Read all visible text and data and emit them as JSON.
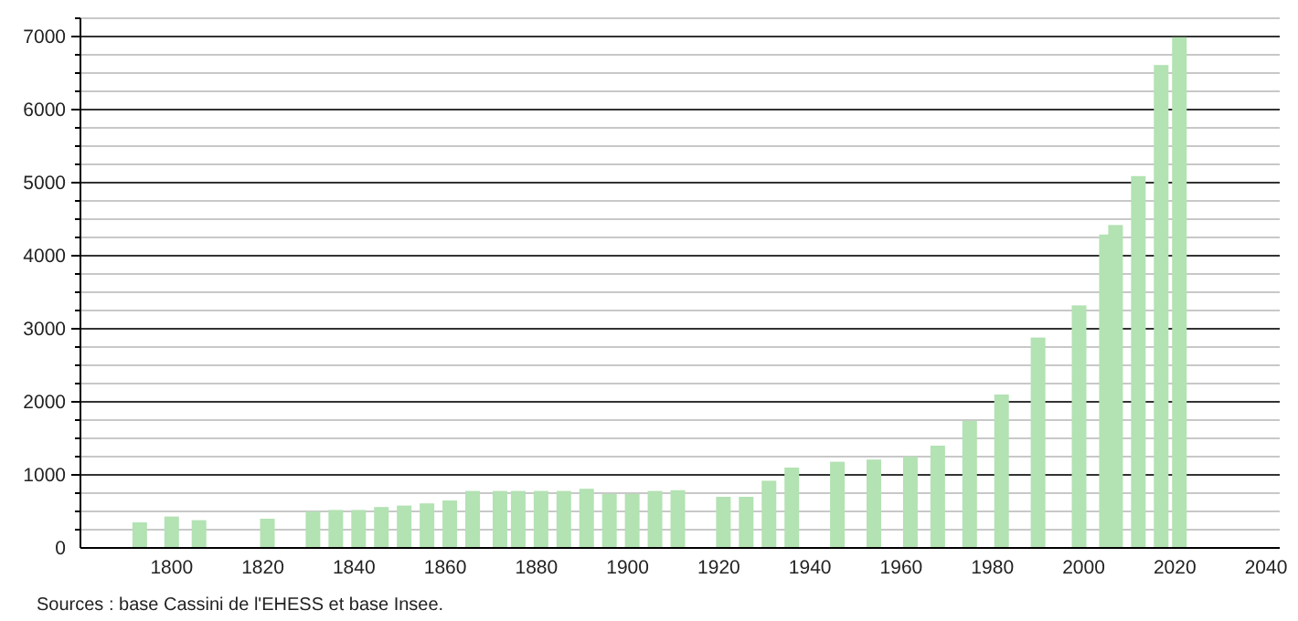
{
  "chart_data": {
    "type": "bar",
    "x": [
      1793,
      1800,
      1806,
      1821,
      1831,
      1836,
      1841,
      1846,
      1851,
      1856,
      1861,
      1866,
      1872,
      1876,
      1881,
      1886,
      1891,
      1896,
      1901,
      1906,
      1911,
      1921,
      1926,
      1931,
      1936,
      1946,
      1954,
      1962,
      1968,
      1975,
      1982,
      1990,
      1999,
      2005,
      2007,
      2012,
      2017,
      2021
    ],
    "values": [
      350,
      430,
      380,
      400,
      500,
      520,
      520,
      560,
      580,
      610,
      650,
      780,
      780,
      780,
      780,
      780,
      810,
      740,
      740,
      780,
      790,
      700,
      700,
      920,
      1100,
      1180,
      1210,
      1250,
      1400,
      1740,
      2100,
      2880,
      3320,
      4290,
      4420,
      5090,
      6610,
      6990
    ],
    "color": "#b3e2b3",
    "xlim": [
      1780,
      2043
    ],
    "xticks": [
      1800,
      1820,
      1840,
      1860,
      1880,
      1900,
      1920,
      1940,
      1960,
      1980,
      2000,
      2020,
      2040
    ],
    "ylim": [
      0,
      7250
    ],
    "yticks": [
      0,
      {
        "value": 250,
        "label": null
      },
      {
        "value": 500,
        "label": null
      },
      {
        "value": 750,
        "label": null
      },
      1000,
      {
        "value": 1250,
        "label": null
      },
      {
        "value": 1500,
        "label": null
      },
      {
        "value": 1750,
        "label": null
      },
      2000,
      {
        "value": 2250,
        "label": null
      },
      {
        "value": 2500,
        "label": null
      },
      {
        "value": 2750,
        "label": null
      },
      3000,
      {
        "value": 3250,
        "label": null
      },
      {
        "value": 3500,
        "label": null
      },
      {
        "value": 3750,
        "label": null
      },
      4000,
      {
        "value": 4250,
        "label": null
      },
      {
        "value": 4500,
        "label": null
      },
      {
        "value": 4750,
        "label": null
      },
      5000,
      {
        "value": 5250,
        "label": null
      },
      {
        "value": 5500,
        "label": null
      },
      {
        "value": 5750,
        "label": null
      },
      6000,
      {
        "value": 6250,
        "label": null
      },
      {
        "value": 6500,
        "label": null
      },
      {
        "value": 6750,
        "label": null
      },
      7000,
      {
        "value": 7250,
        "label": null
      }
    ],
    "grid": "y",
    "annotations": [
      "Sources : base Cassini de l'EHESS et base Insee."
    ]
  }
}
